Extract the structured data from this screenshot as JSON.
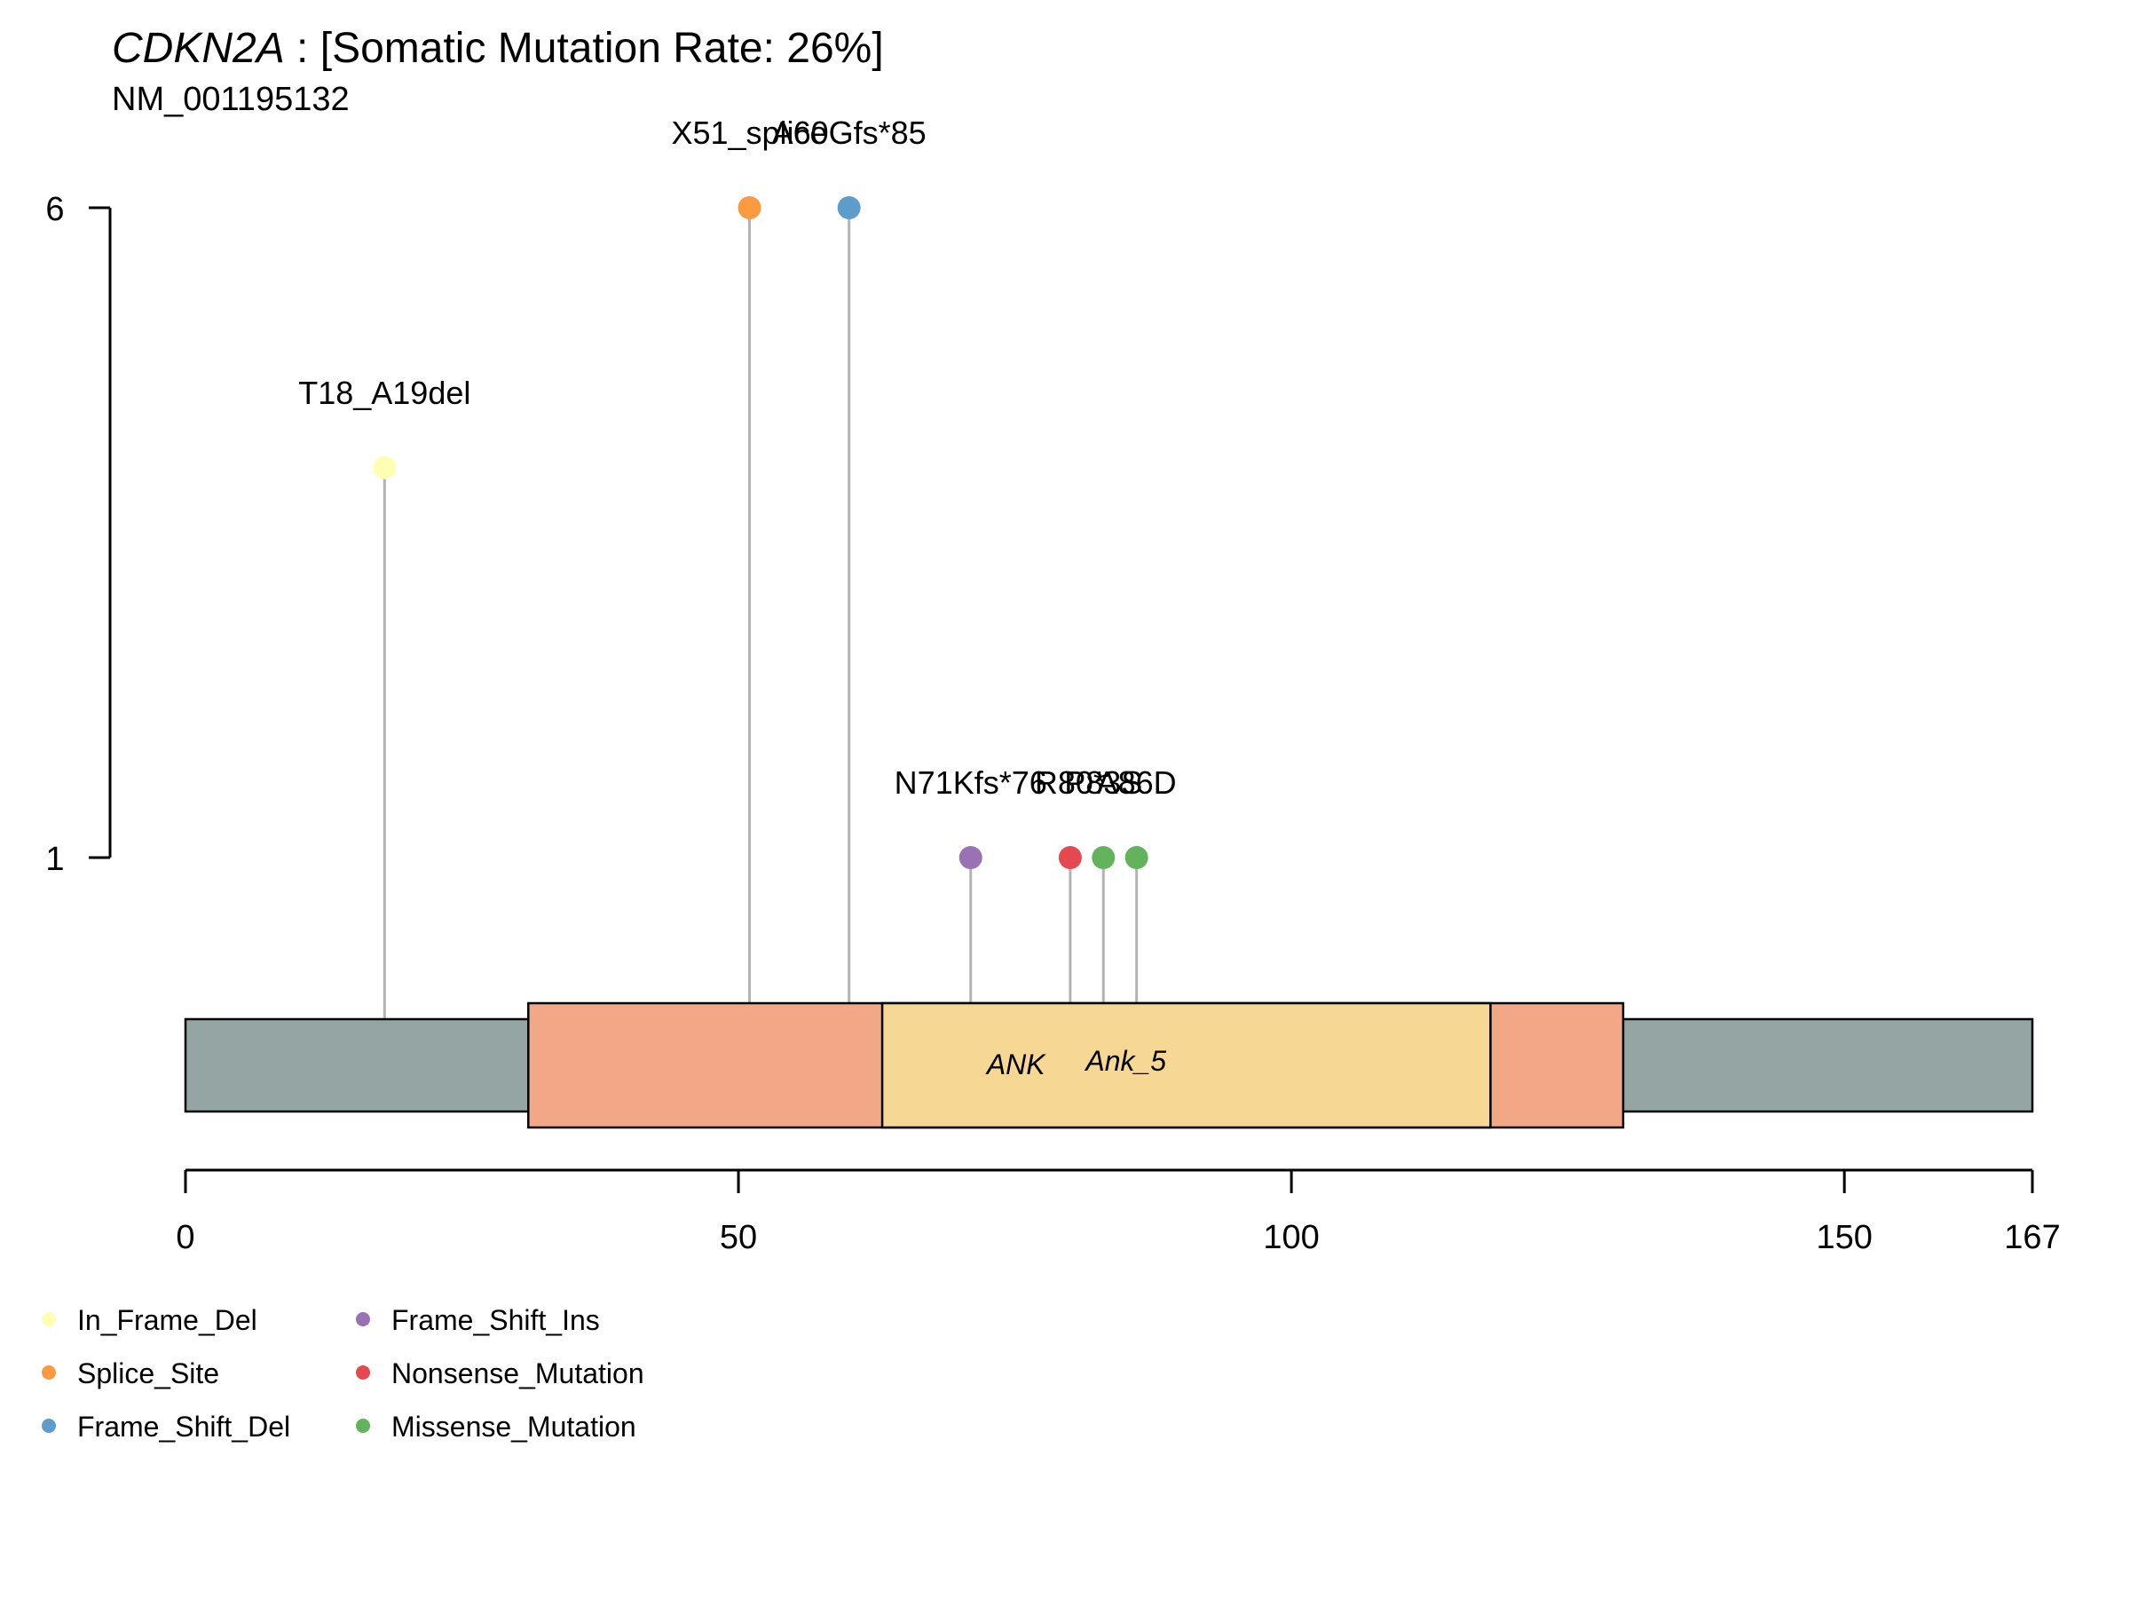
{
  "header": {
    "gene": "CDKN2A",
    "rate_text": " : [Somatic Mutation Rate: 26%]",
    "transcript": "NM_001195132"
  },
  "chart_data": {
    "type": "lollipop",
    "protein_length": 167,
    "x_ticks": [
      0,
      50,
      100,
      150,
      167
    ],
    "y_ticks": [
      1,
      6
    ],
    "mutations": [
      {
        "label": "T18_A19del",
        "pos": 18,
        "count": 4,
        "class": "In_Frame_Del"
      },
      {
        "label": "X51_splice",
        "pos": 51,
        "count": 6,
        "class": "Splice_Site"
      },
      {
        "label": "A60Gfs*85",
        "pos": 60,
        "count": 6,
        "class": "Frame_Shift_Del"
      },
      {
        "label": "N71Kfs*76",
        "pos": 71,
        "count": 1,
        "class": "Frame_Shift_Ins"
      },
      {
        "label": "R80*",
        "pos": 80,
        "count": 1,
        "class": "Nonsense_Mutation"
      },
      {
        "label": "P83S",
        "pos": 83,
        "count": 1,
        "class": "Missense_Mutation"
      },
      {
        "label": "A86D",
        "pos": 86,
        "count": 1,
        "class": "Missense_Mutation"
      }
    ],
    "domains": [
      {
        "label": "",
        "start": 31,
        "end": 130,
        "color": "#F2A886"
      },
      {
        "label": "ANK",
        "start": 63,
        "end": 118,
        "color": "#F6D794"
      },
      {
        "label": "Ank_5",
        "start": 63,
        "end": 118,
        "color": "#F6D794"
      }
    ],
    "backbone_color": "#95A5A4",
    "legend": [
      {
        "label": "In_Frame_Del",
        "color": "#FFFFB3"
      },
      {
        "label": "Splice_Site",
        "color": "#FB9A3F"
      },
      {
        "label": "Frame_Shift_Del",
        "color": "#5E9DCB"
      },
      {
        "label": "Frame_Shift_Ins",
        "color": "#9A71B5"
      },
      {
        "label": "Nonsense_Mutation",
        "color": "#E5484F"
      },
      {
        "label": "Missense_Mutation",
        "color": "#62B35C"
      }
    ]
  }
}
